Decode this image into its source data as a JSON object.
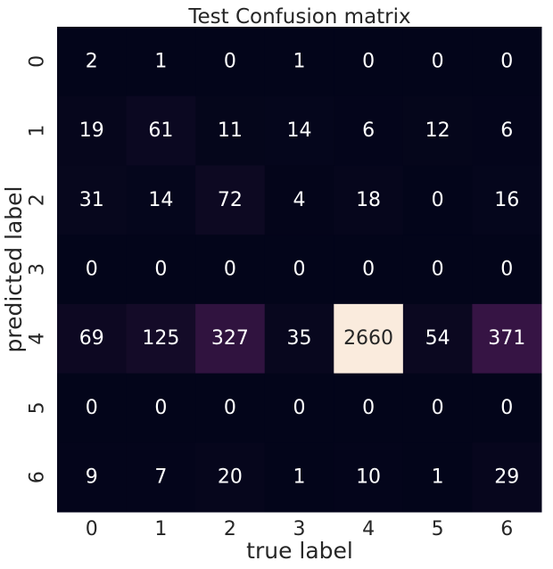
{
  "chart_data": {
    "type": "heatmap",
    "title": "Test Confusion matrix",
    "xlabel": "true label",
    "ylabel": "predicted label",
    "x_categories": [
      "0",
      "1",
      "2",
      "3",
      "4",
      "5",
      "6"
    ],
    "y_categories": [
      "0",
      "1",
      "2",
      "3",
      "4",
      "5",
      "6"
    ],
    "values": [
      [
        2,
        1,
        0,
        1,
        0,
        0,
        0
      ],
      [
        19,
        61,
        11,
        14,
        6,
        12,
        6
      ],
      [
        31,
        14,
        72,
        4,
        18,
        0,
        16
      ],
      [
        0,
        0,
        0,
        0,
        0,
        0,
        0
      ],
      [
        69,
        125,
        327,
        35,
        2660,
        54,
        371
      ],
      [
        0,
        0,
        0,
        0,
        0,
        0,
        0
      ],
      [
        9,
        7,
        20,
        1,
        10,
        1,
        29
      ]
    ],
    "colormap": "rocket",
    "vmin": 0,
    "vmax": 2660,
    "colorbar": false,
    "grid": false
  }
}
